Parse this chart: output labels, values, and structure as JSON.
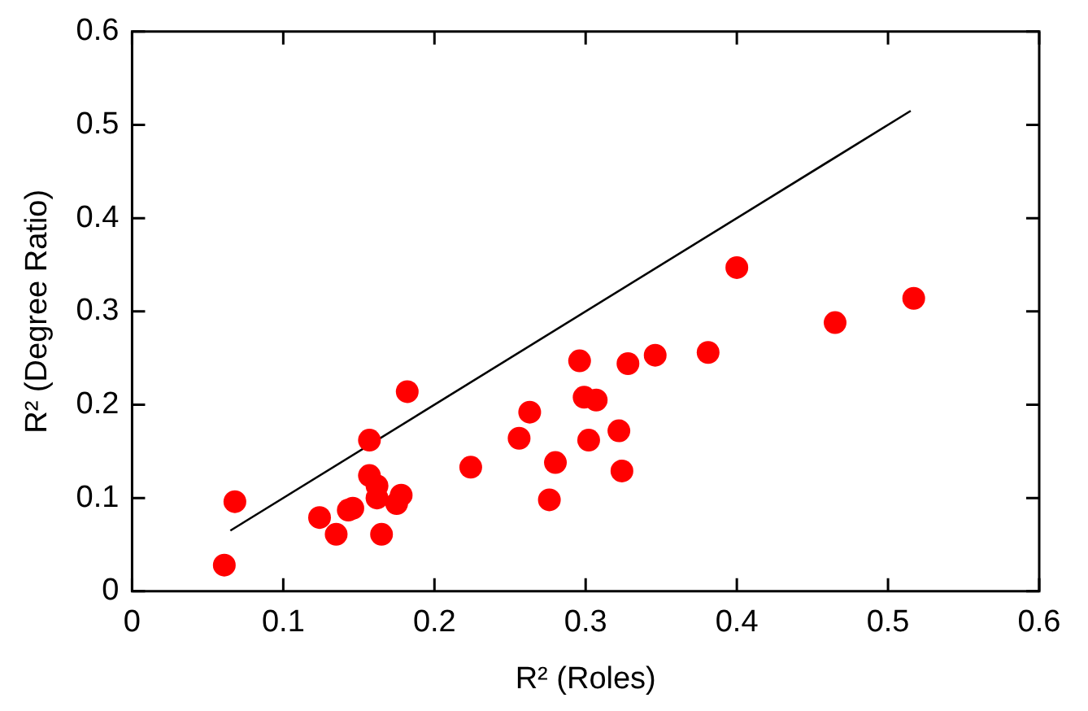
{
  "chart_data": {
    "type": "scatter",
    "xlabel": "R² (Roles)",
    "ylabel": "R² (Degree Ratio)",
    "xlim": [
      0,
      0.6
    ],
    "xticks": [
      0,
      0.1,
      0.2,
      0.3,
      0.4,
      0.5,
      0.6
    ],
    "ylim": [
      0,
      0.6
    ],
    "yticks": [
      0,
      0.1,
      0.2,
      0.3,
      0.4,
      0.5,
      0.6
    ],
    "grid": false,
    "legend": false,
    "marker": "circle",
    "series": [
      {
        "color": "#ff0000",
        "x": [
          0.061,
          0.068,
          0.124,
          0.135,
          0.143,
          0.146,
          0.157,
          0.157,
          0.162,
          0.162,
          0.165,
          0.175,
          0.178,
          0.182,
          0.224,
          0.256,
          0.263,
          0.276,
          0.28,
          0.296,
          0.299,
          0.307,
          0.302,
          0.322,
          0.324,
          0.328,
          0.346,
          0.381,
          0.4,
          0.465,
          0.517
        ],
        "values": [
          0.028,
          0.096,
          0.079,
          0.061,
          0.087,
          0.089,
          0.162,
          0.124,
          0.113,
          0.1,
          0.061,
          0.094,
          0.103,
          0.214,
          0.133,
          0.164,
          0.192,
          0.098,
          0.138,
          0.247,
          0.208,
          0.205,
          0.162,
          0.172,
          0.129,
          0.244,
          0.253,
          0.256,
          0.347,
          0.288,
          0.314
        ]
      },
      {
        "type": "line",
        "color": "#000000",
        "marker": "none",
        "line_style": "solid",
        "x": [
          0.065,
          0.515
        ],
        "values": [
          0.065,
          0.515
        ]
      }
    ]
  }
}
